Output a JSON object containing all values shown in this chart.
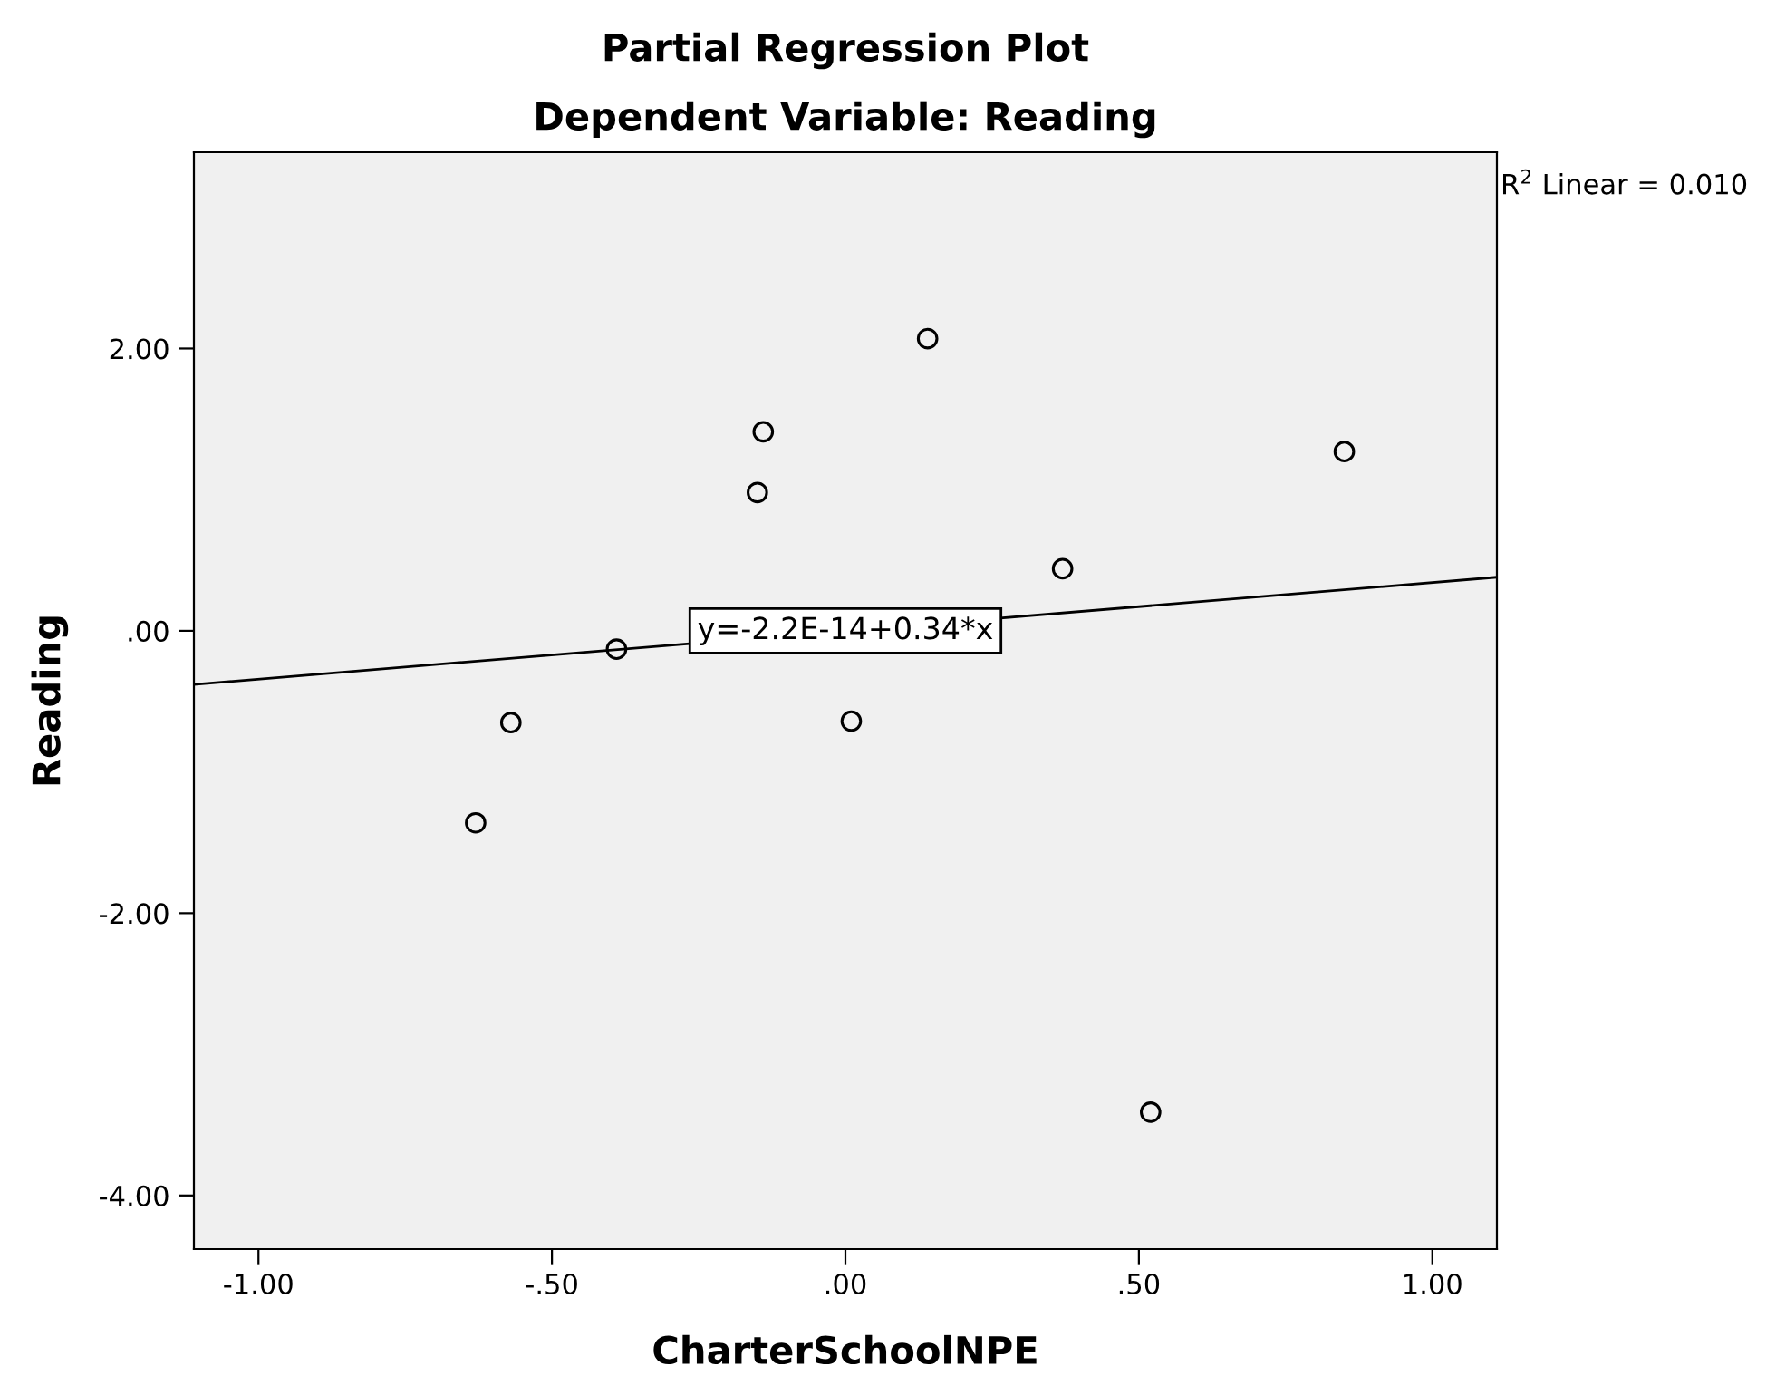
{
  "chart_data": {
    "type": "scatter",
    "title": "Partial Regression Plot",
    "subtitle": "Dependent Variable: Reading",
    "xlabel": "CharterSchoolNPE",
    "ylabel": "Reading",
    "series": [
      {
        "color": "#000000",
        "marker": "circle",
        "x": [
          0.14,
          -0.14,
          -0.15,
          0.85,
          0.37,
          -0.39,
          -0.57,
          0.01,
          -0.63,
          0.52
        ],
        "values": [
          2.07,
          1.41,
          0.98,
          1.27,
          0.44,
          -0.13,
          -0.65,
          -0.64,
          -1.36,
          -3.41
        ]
      },
      {
        "type": "line",
        "color": "#000000",
        "marker": "none",
        "line_style": "solid",
        "x": [
          -1.11,
          1.11
        ],
        "values": [
          -0.38,
          0.38
        ]
      }
    ],
    "annotations": [
      {
        "text": "y=-2.2E-14+0.34*x",
        "x": 0.0,
        "y": 0.0
      },
      "R$^{2}$ Linear = 0.010"
    ],
    "xlim": [
      -1.11,
      1.11
    ],
    "ylim": [
      -4.38,
      3.39
    ],
    "xticks": [
      {
        "value": -1.0,
        "label": "-1.00"
      },
      {
        "value": -0.5,
        "label": "-.50"
      },
      {
        "value": 0.0,
        "label": ".00"
      },
      {
        "value": 0.5,
        "label": ".50"
      },
      {
        "value": 1.0,
        "label": "1.00"
      }
    ],
    "yticks": [
      {
        "value": -4.0,
        "label": "-4.00"
      },
      {
        "value": -2.0,
        "label": "-2.00"
      },
      {
        "value": 0.0,
        "label": ".00"
      },
      {
        "value": 2.0,
        "label": "2.00"
      }
    ],
    "grid": false,
    "legend": false
  }
}
